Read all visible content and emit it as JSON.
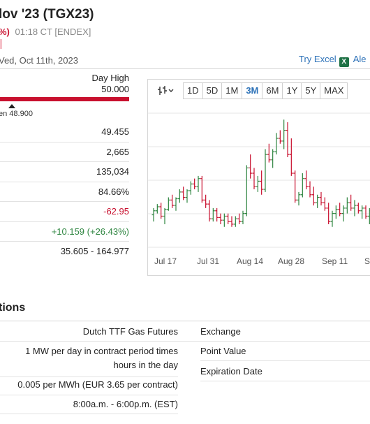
{
  "header": {
    "title": "lov '23 (TGX23)",
    "change_pct": "%)",
    "time": "01:18 CT [ENDEX]",
    "date": "Ved, Oct 11th, 2023"
  },
  "toolbar": {
    "try_excel": "Try Excel",
    "excel_icon_glyph": "X",
    "alerts": "Ale"
  },
  "range": {
    "day_high_label": "Day High",
    "day_high_value": "50.000",
    "open_label": "en 48.900",
    "caret_color": "#222222",
    "bar_color": "#c8102e"
  },
  "stats": [
    {
      "value": "49.455",
      "tone": "neutral"
    },
    {
      "value": "2,665",
      "tone": "neutral"
    },
    {
      "value": "135,034",
      "tone": "neutral"
    },
    {
      "value": "84.66%",
      "tone": "neutral"
    },
    {
      "value": "-62.95",
      "tone": "neg"
    },
    {
      "value": "+10.159 (+26.43%)",
      "tone": "pos"
    },
    {
      "value": "35.605 - 164.977",
      "tone": "neutral"
    }
  ],
  "chart": {
    "type_icon": "ohlc-chart-icon",
    "ranges": [
      {
        "label": "1D",
        "active": false
      },
      {
        "label": "5D",
        "active": false
      },
      {
        "label": "1M",
        "active": false
      },
      {
        "label": "3M",
        "active": true
      },
      {
        "label": "6M",
        "active": false
      },
      {
        "label": "1Y",
        "active": false
      },
      {
        "label": "5Y",
        "active": false
      },
      {
        "label": "MAX",
        "active": false
      }
    ]
  },
  "chart_data": {
    "type": "ohlc",
    "x_tick_labels": [
      "Jul 17",
      "Jul 31",
      "Aug 14",
      "Aug 28",
      "Sep 11",
      "S"
    ],
    "up_color": "#2e8540",
    "down_color": "#c8102e",
    "grid": true,
    "bars": [
      {
        "o": 39.5,
        "h": 42,
        "l": 37,
        "c": 41
      },
      {
        "o": 41,
        "h": 43.5,
        "l": 40,
        "c": 42.5
      },
      {
        "o": 42.5,
        "h": 44,
        "l": 38,
        "c": 39
      },
      {
        "o": 39,
        "h": 42,
        "l": 36,
        "c": 41.5
      },
      {
        "o": 41.5,
        "h": 46,
        "l": 41,
        "c": 45
      },
      {
        "o": 45,
        "h": 47,
        "l": 42,
        "c": 43
      },
      {
        "o": 43,
        "h": 46,
        "l": 41,
        "c": 45.5
      },
      {
        "o": 45.5,
        "h": 49,
        "l": 44,
        "c": 48
      },
      {
        "o": 48,
        "h": 50,
        "l": 45,
        "c": 46
      },
      {
        "o": 46,
        "h": 49,
        "l": 44,
        "c": 48.5
      },
      {
        "o": 48.5,
        "h": 52,
        "l": 47,
        "c": 51
      },
      {
        "o": 51,
        "h": 53,
        "l": 49,
        "c": 50
      },
      {
        "o": 50,
        "h": 54,
        "l": 48,
        "c": 53
      },
      {
        "o": 53,
        "h": 54,
        "l": 44,
        "c": 45
      },
      {
        "o": 45,
        "h": 47,
        "l": 42,
        "c": 43.5
      },
      {
        "o": 43.5,
        "h": 45,
        "l": 37,
        "c": 38
      },
      {
        "o": 38,
        "h": 42,
        "l": 37,
        "c": 41
      },
      {
        "o": 41,
        "h": 42,
        "l": 37,
        "c": 38.5
      },
      {
        "o": 38.5,
        "h": 40,
        "l": 36,
        "c": 37.5
      },
      {
        "o": 37.5,
        "h": 40,
        "l": 35,
        "c": 39
      },
      {
        "o": 39,
        "h": 40,
        "l": 36,
        "c": 37
      },
      {
        "o": 37,
        "h": 39,
        "l": 35,
        "c": 36
      },
      {
        "o": 36,
        "h": 39,
        "l": 35,
        "c": 38
      },
      {
        "o": 38,
        "h": 40,
        "l": 36,
        "c": 37
      },
      {
        "o": 37,
        "h": 41,
        "l": 36,
        "c": 40
      },
      {
        "o": 40,
        "h": 58,
        "l": 39,
        "c": 57
      },
      {
        "o": 57,
        "h": 62,
        "l": 53,
        "c": 55
      },
      {
        "o": 55,
        "h": 57,
        "l": 49,
        "c": 50
      },
      {
        "o": 50,
        "h": 54,
        "l": 48,
        "c": 52
      },
      {
        "o": 52,
        "h": 56,
        "l": 47,
        "c": 49
      },
      {
        "o": 49,
        "h": 64,
        "l": 48,
        "c": 62
      },
      {
        "o": 62,
        "h": 66,
        "l": 59,
        "c": 60
      },
      {
        "o": 60,
        "h": 64,
        "l": 57,
        "c": 63
      },
      {
        "o": 63,
        "h": 70,
        "l": 62,
        "c": 68
      },
      {
        "o": 68,
        "h": 71,
        "l": 66,
        "c": 67
      },
      {
        "o": 67,
        "h": 75,
        "l": 64,
        "c": 71
      },
      {
        "o": 71,
        "h": 74,
        "l": 61,
        "c": 62
      },
      {
        "o": 62,
        "h": 68,
        "l": 54,
        "c": 55
      },
      {
        "o": 55,
        "h": 56,
        "l": 44,
        "c": 45
      },
      {
        "o": 45,
        "h": 48,
        "l": 43,
        "c": 47
      },
      {
        "o": 47,
        "h": 55,
        "l": 46,
        "c": 53
      },
      {
        "o": 53,
        "h": 56,
        "l": 49,
        "c": 50
      },
      {
        "o": 50,
        "h": 52,
        "l": 46,
        "c": 47
      },
      {
        "o": 47,
        "h": 50,
        "l": 43,
        "c": 44
      },
      {
        "o": 44,
        "h": 47,
        "l": 42,
        "c": 46
      },
      {
        "o": 46,
        "h": 48,
        "l": 43,
        "c": 44
      },
      {
        "o": 44,
        "h": 46,
        "l": 41,
        "c": 42
      },
      {
        "o": 42,
        "h": 44,
        "l": 36,
        "c": 37
      },
      {
        "o": 37,
        "h": 41,
        "l": 35,
        "c": 40
      },
      {
        "o": 40,
        "h": 43,
        "l": 38,
        "c": 41.5
      },
      {
        "o": 41.5,
        "h": 44,
        "l": 39,
        "c": 40
      },
      {
        "o": 40,
        "h": 43,
        "l": 37,
        "c": 42
      },
      {
        "o": 42,
        "h": 46,
        "l": 40,
        "c": 44
      },
      {
        "o": 44,
        "h": 47,
        "l": 41,
        "c": 42
      },
      {
        "o": 42,
        "h": 45,
        "l": 39,
        "c": 43
      },
      {
        "o": 43,
        "h": 44,
        "l": 40,
        "c": 41
      },
      {
        "o": 41,
        "h": 43,
        "l": 38,
        "c": 42
      },
      {
        "o": 42,
        "h": 43,
        "l": 38,
        "c": 39
      },
      {
        "o": 39,
        "h": 42,
        "l": 36,
        "c": 41
      },
      {
        "o": 41,
        "h": 42,
        "l": 36,
        "c": 37
      },
      {
        "o": 37,
        "h": 40,
        "l": 35,
        "c": 38
      }
    ],
    "ylim": [
      30,
      80
    ]
  },
  "specs_section": {
    "title": "tions",
    "rows": [
      {
        "left": "Dutch TTF Gas Futures",
        "right": "Exchange"
      },
      {
        "left": "1 MW per day in contract period times hours in the day",
        "right": "Point Value"
      },
      {
        "left": "",
        "right": "Expiration Date"
      },
      {
        "left": "0.005 per MWh (EUR 3.65 per contract)",
        "right": ""
      },
      {
        "left": "8:00a.m. - 6:00p.m. (EST)",
        "right": ""
      }
    ]
  }
}
